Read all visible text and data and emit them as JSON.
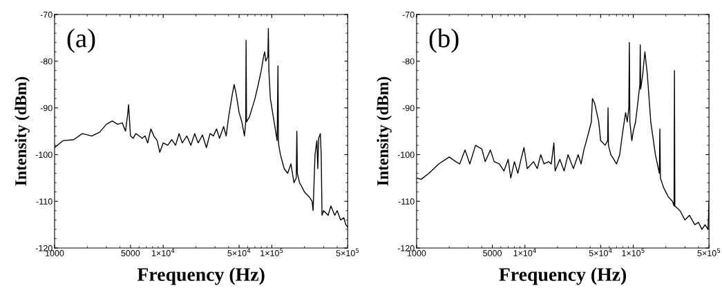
{
  "chart_data": [
    {
      "type": "line",
      "xlabel": "Frequency (Hz)",
      "ylabel": "Intensity (dBm)",
      "annotations": [
        "(a)"
      ],
      "log": "x",
      "grid": false,
      "legend": false,
      "xlim": [
        1000,
        500000
      ],
      "ylim": [
        -120,
        -70
      ],
      "xticks": [
        1000,
        5000,
        {
          "value": 10000,
          "label": "1×10$^{4}$"
        },
        {
          "value": 50000,
          "label": "5×10$^{4}$"
        },
        {
          "value": 100000,
          "label": "1×10$^{5}$"
        },
        {
          "value": 500000,
          "label": "5×10$^{5}$"
        }
      ],
      "yticks": [
        -120,
        -110,
        -100,
        -90,
        -80,
        -70
      ],
      "x": [
        1000,
        1200,
        1500,
        1800,
        2200,
        2600,
        3000,
        3400,
        3800,
        4200,
        4500,
        4700,
        4800,
        5000,
        5300,
        5600,
        6000,
        6400,
        6800,
        7200,
        7700,
        8200,
        8800,
        9300,
        10000,
        11000,
        12000,
        13000,
        14000,
        15000,
        16500,
        18000,
        19500,
        21000,
        23000,
        25000,
        27000,
        29000,
        31000,
        33000,
        36000,
        38000,
        40000,
        43000,
        45000,
        47000,
        50000,
        53000,
        56000,
        57500,
        58000,
        58500,
        62000,
        66000,
        70000,
        75000,
        80000,
        84000,
        86000,
        88000,
        92000,
        93000,
        94000,
        97000,
        105000,
        112000,
        114000,
        115000,
        116000,
        120000,
        130000,
        140000,
        150000,
        160000,
        168000,
        170000,
        172000,
        180000,
        190000,
        200000,
        220000,
        235000,
        240000,
        250000,
        260000,
        265000,
        270000,
        280000,
        285000,
        290000,
        300000,
        330000,
        350000,
        380000,
        400000,
        430000,
        460000,
        480000,
        500000
      ],
      "series": [
        {
          "color": "#000000",
          "values": [
            -98.5,
            -97,
            -96.8,
            -95.5,
            -96,
            -95.2,
            -93.5,
            -92.8,
            -93.5,
            -93.2,
            -95,
            -91.5,
            -89.3,
            -96,
            -96.5,
            -95.5,
            -96,
            -96.5,
            -96,
            -97.5,
            -94.5,
            -96,
            -97,
            -99.5,
            -97.5,
            -98,
            -96.8,
            -98,
            -95.5,
            -97.5,
            -96,
            -98,
            -95.5,
            -97.5,
            -95.8,
            -98.5,
            -95.5,
            -96,
            -94.5,
            -96.5,
            -94,
            -96,
            -92,
            -87.5,
            -85,
            -87,
            -91,
            -93,
            -96,
            -93,
            -75.5,
            -93,
            -92,
            -90,
            -88,
            -85,
            -82,
            -79,
            -78,
            -80,
            -79,
            -73,
            -82,
            -88,
            -93,
            -97,
            -81,
            -97,
            -98,
            -100,
            -103,
            -104,
            -102,
            -106,
            -105,
            -95,
            -104,
            -106,
            -107,
            -108,
            -109,
            -110,
            -112,
            -100,
            -97,
            -103,
            -96.5,
            -95.5,
            -100,
            -113,
            -112,
            -113,
            -111,
            -113,
            -112,
            -114,
            -113.5,
            -115,
            -115.5
          ]
        }
      ]
    },
    {
      "type": "line",
      "xlabel": "Frequency (Hz)",
      "ylabel": "Intensity (dBm)",
      "annotations": [
        "(b)"
      ],
      "log": "x",
      "grid": false,
      "legend": false,
      "xlim": [
        1000,
        500000
      ],
      "ylim": [
        -120,
        -70
      ],
      "xticks": [
        1000,
        5000,
        {
          "value": 10000,
          "label": "1×10$^{4}$"
        },
        {
          "value": 50000,
          "label": "5×10$^{4}$"
        },
        {
          "value": 100000,
          "label": "1×10$^{5}$"
        },
        {
          "value": 500000,
          "label": "5×10$^{5}$"
        }
      ],
      "yticks": [
        -120,
        -110,
        -100,
        -90,
        -80,
        -70
      ],
      "x": [
        1000,
        1100,
        1300,
        1600,
        2000,
        2300,
        2500,
        2800,
        3100,
        3500,
        4000,
        4300,
        4800,
        5200,
        5800,
        6400,
        7000,
        7400,
        8000,
        8600,
        9200,
        9800,
        10500,
        12000,
        13000,
        14000,
        15000,
        16500,
        17500,
        18500,
        19000,
        21000,
        23000,
        25000,
        28000,
        31000,
        33000,
        35000,
        38000,
        41000,
        42000,
        44000,
        46000,
        48000,
        50000,
        55000,
        58000,
        58500,
        59000,
        62000,
        66000,
        70000,
        75000,
        80000,
        85000,
        88000,
        91000,
        92000,
        93000,
        97000,
        100000,
        105000,
        110000,
        115000,
        116000,
        117000,
        122000,
        128000,
        135000,
        145000,
        160000,
        174000,
        176000,
        178000,
        190000,
        210000,
        230000,
        238000,
        240000,
        242000,
        270000,
        300000,
        330000,
        370000,
        400000,
        430000,
        460000,
        490000,
        500000
      ],
      "series": [
        {
          "color": "#000000",
          "values": [
            -105,
            -105.3,
            -104,
            -102,
            -100.5,
            -101.5,
            -102,
            -99,
            -102,
            -98,
            -98.8,
            -101.5,
            -99,
            -101.5,
            -102,
            -103.5,
            -101,
            -105,
            -101.5,
            -104,
            -101,
            -98.5,
            -103,
            -101.5,
            -103,
            -100,
            -102,
            -101.5,
            -102,
            -97.5,
            -103.5,
            -101,
            -103.5,
            -100,
            -103,
            -100,
            -102,
            -99,
            -96,
            -93,
            -88,
            -89,
            -91,
            -93,
            -97,
            -98,
            -97,
            -90,
            -98,
            -100,
            -101,
            -102,
            -100,
            -95,
            -91,
            -93,
            -90,
            -76,
            -93,
            -97,
            -95,
            -93,
            -89,
            -85,
            -76.5,
            -86,
            -83,
            -78,
            -83,
            -93,
            -100,
            -104,
            -94.5,
            -105,
            -107,
            -109,
            -110,
            -111,
            -82,
            -111,
            -112,
            -114,
            -113,
            -115,
            -114.5,
            -116,
            -115,
            -116,
            -110
          ]
        }
      ]
    }
  ]
}
